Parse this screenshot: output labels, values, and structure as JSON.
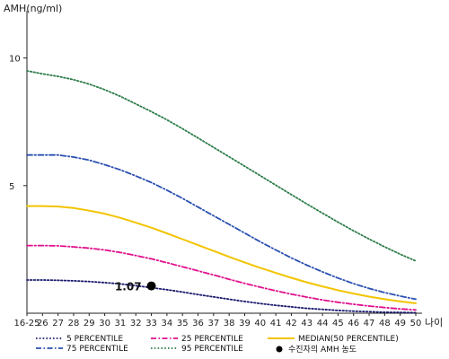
{
  "chart_data": {
    "type": "line",
    "ylabel": "AMH(ng/ml)",
    "xlabel": "나이",
    "categories": [
      "16-25",
      "26",
      "27",
      "28",
      "29",
      "30",
      "31",
      "32",
      "33",
      "34",
      "35",
      "36",
      "37",
      "38",
      "39",
      "40",
      "41",
      "42",
      "43",
      "44",
      "45",
      "46",
      "47",
      "48",
      "49",
      "50"
    ],
    "ylim": [
      0,
      11.5
    ],
    "yticks": [
      5,
      10
    ],
    "series": [
      {
        "name": "5 PERCENTILE",
        "color": "#1a1a6e",
        "dash": "dotted",
        "values": [
          1.3,
          1.3,
          1.29,
          1.27,
          1.24,
          1.2,
          1.15,
          1.08,
          1.0,
          0.92,
          0.83,
          0.73,
          0.64,
          0.55,
          0.46,
          0.38,
          0.31,
          0.25,
          0.19,
          0.15,
          0.11,
          0.08,
          0.06,
          0.04,
          0.03,
          0.02
        ]
      },
      {
        "name": "25 PERCENTILE",
        "color": "#e0108c",
        "dash": "dashdot",
        "values": [
          2.65,
          2.65,
          2.64,
          2.6,
          2.55,
          2.48,
          2.38,
          2.26,
          2.13,
          1.98,
          1.82,
          1.66,
          1.5,
          1.33,
          1.17,
          1.02,
          0.88,
          0.75,
          0.63,
          0.52,
          0.43,
          0.35,
          0.28,
          0.22,
          0.17,
          0.13
        ]
      },
      {
        "name": "MEDIAN(50 PERCENTILE)",
        "color": "#f2c400",
        "dash": "solid",
        "values": [
          4.2,
          4.2,
          4.18,
          4.12,
          4.02,
          3.9,
          3.74,
          3.55,
          3.35,
          3.13,
          2.9,
          2.67,
          2.44,
          2.21,
          1.99,
          1.78,
          1.58,
          1.39,
          1.21,
          1.05,
          0.9,
          0.77,
          0.65,
          0.55,
          0.46,
          0.39
        ]
      },
      {
        "name": "75 PERCENTILE",
        "color": "#2a4fb0",
        "dash": "dashdot",
        "values": [
          6.2,
          6.2,
          6.2,
          6.12,
          6.0,
          5.82,
          5.62,
          5.38,
          5.12,
          4.82,
          4.5,
          4.16,
          3.82,
          3.48,
          3.14,
          2.8,
          2.48,
          2.17,
          1.88,
          1.62,
          1.38,
          1.16,
          0.97,
          0.81,
          0.67,
          0.55
        ]
      },
      {
        "name": "95 PERCENTILE",
        "color": "#2e7d4a",
        "dash": "dotted",
        "values": [
          9.5,
          9.38,
          9.28,
          9.15,
          8.98,
          8.76,
          8.5,
          8.2,
          7.9,
          7.58,
          7.23,
          6.87,
          6.5,
          6.13,
          5.76,
          5.39,
          5.02,
          4.65,
          4.28,
          3.92,
          3.57,
          3.23,
          2.91,
          2.6,
          2.31,
          2.05
        ]
      }
    ],
    "marker": {
      "name": "수진자의 AMH 농도",
      "category": "33",
      "value": 1.07,
      "label": "1.07"
    },
    "legend": {
      "placement": "bottom",
      "entries": [
        {
          "label": "5 PERCENTILE",
          "color": "#1a1a6e",
          "dash": "dotted"
        },
        {
          "label": "25 PERCENTILE",
          "color": "#e0108c",
          "dash": "dashdot"
        },
        {
          "label": "MEDIAN(50 PERCENTILE)",
          "color": "#f2c400",
          "dash": "solid"
        },
        {
          "label": "75 PERCENTILE",
          "color": "#2a4fb0",
          "dash": "dashdot"
        },
        {
          "label": "95 PERCENTILE",
          "color": "#2e7d4a",
          "dash": "dotted"
        },
        {
          "label": "수진자의 AMH 농도",
          "color": "#000000",
          "dash": "marker"
        }
      ]
    }
  }
}
